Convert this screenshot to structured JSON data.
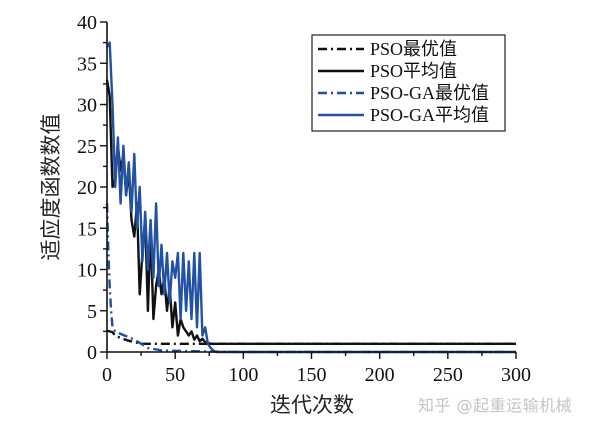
{
  "chart_data": {
    "type": "line",
    "title": "",
    "xlabel": "迭代次数",
    "ylabel": "适应度函数数值",
    "xlim": [
      0,
      300
    ],
    "ylim": [
      0,
      40
    ],
    "x_ticks": [
      "0",
      "50",
      "100",
      "150",
      "200",
      "250",
      "300"
    ],
    "y_ticks": [
      "0",
      "5",
      "10",
      "15",
      "20",
      "25",
      "30",
      "35",
      "40"
    ],
    "grid": false,
    "legend_position": "upper right",
    "series": [
      {
        "name": "PSO最优值",
        "color": "#111111",
        "style": "dash-dot",
        "x": [
          0,
          2,
          4,
          6,
          10,
          15,
          20,
          25,
          30,
          300
        ],
        "y": [
          2.6,
          2.5,
          2.4,
          2.0,
          1.7,
          1.4,
          1.2,
          1.0,
          1.0,
          1.0
        ]
      },
      {
        "name": "PSO平均值",
        "color": "#111111",
        "style": "solid",
        "x": [
          0,
          2,
          4,
          6,
          8,
          10,
          12,
          14,
          16,
          18,
          20,
          22,
          24,
          26,
          28,
          30,
          32,
          34,
          36,
          38,
          40,
          42,
          44,
          46,
          48,
          50,
          52,
          54,
          56,
          58,
          60,
          62,
          64,
          66,
          68,
          70,
          72,
          74,
          76,
          78,
          80,
          300
        ],
        "y": [
          33,
          31,
          20,
          21,
          25,
          22,
          24,
          19,
          22,
          16,
          14,
          18,
          7,
          12,
          16,
          5,
          15,
          4,
          8,
          10,
          7,
          9,
          5,
          8,
          3,
          6,
          2,
          4,
          3,
          2.5,
          2,
          2.5,
          1.5,
          2,
          1.3,
          1.6,
          1.2,
          1.1,
          1.0,
          1.0,
          1.0,
          1.0
        ]
      },
      {
        "name": "PSO-GA最优值",
        "color": "#1f4fa0",
        "style": "dash-dot",
        "x": [
          0,
          1,
          2,
          3,
          4,
          6,
          10,
          20,
          30,
          40,
          60,
          80,
          100,
          300
        ],
        "y": [
          18,
          12,
          8,
          5,
          3,
          2.5,
          2.2,
          1.5,
          0.5,
          0.2,
          0.1,
          0.05,
          0,
          0
        ]
      },
      {
        "name": "PSO-GA平均值",
        "color": "#2352a3",
        "style": "solid",
        "x": [
          0,
          2,
          4,
          6,
          8,
          10,
          12,
          14,
          16,
          18,
          20,
          22,
          24,
          26,
          28,
          30,
          32,
          34,
          36,
          38,
          40,
          42,
          44,
          46,
          48,
          50,
          52,
          54,
          56,
          58,
          60,
          62,
          64,
          66,
          68,
          70,
          72,
          74,
          76,
          78,
          80,
          85,
          300
        ],
        "y": [
          37,
          37.5,
          30,
          20,
          26,
          18,
          25,
          19,
          23,
          17,
          24,
          15,
          20,
          11,
          17,
          10,
          16,
          9,
          18,
          8,
          13,
          7,
          12,
          6,
          11,
          9,
          12,
          4,
          12,
          5,
          11,
          4,
          12,
          3,
          12,
          2,
          3,
          1,
          0.5,
          0.2,
          0,
          0,
          0
        ]
      }
    ]
  },
  "watermark": "知乎 @起重运输机械"
}
